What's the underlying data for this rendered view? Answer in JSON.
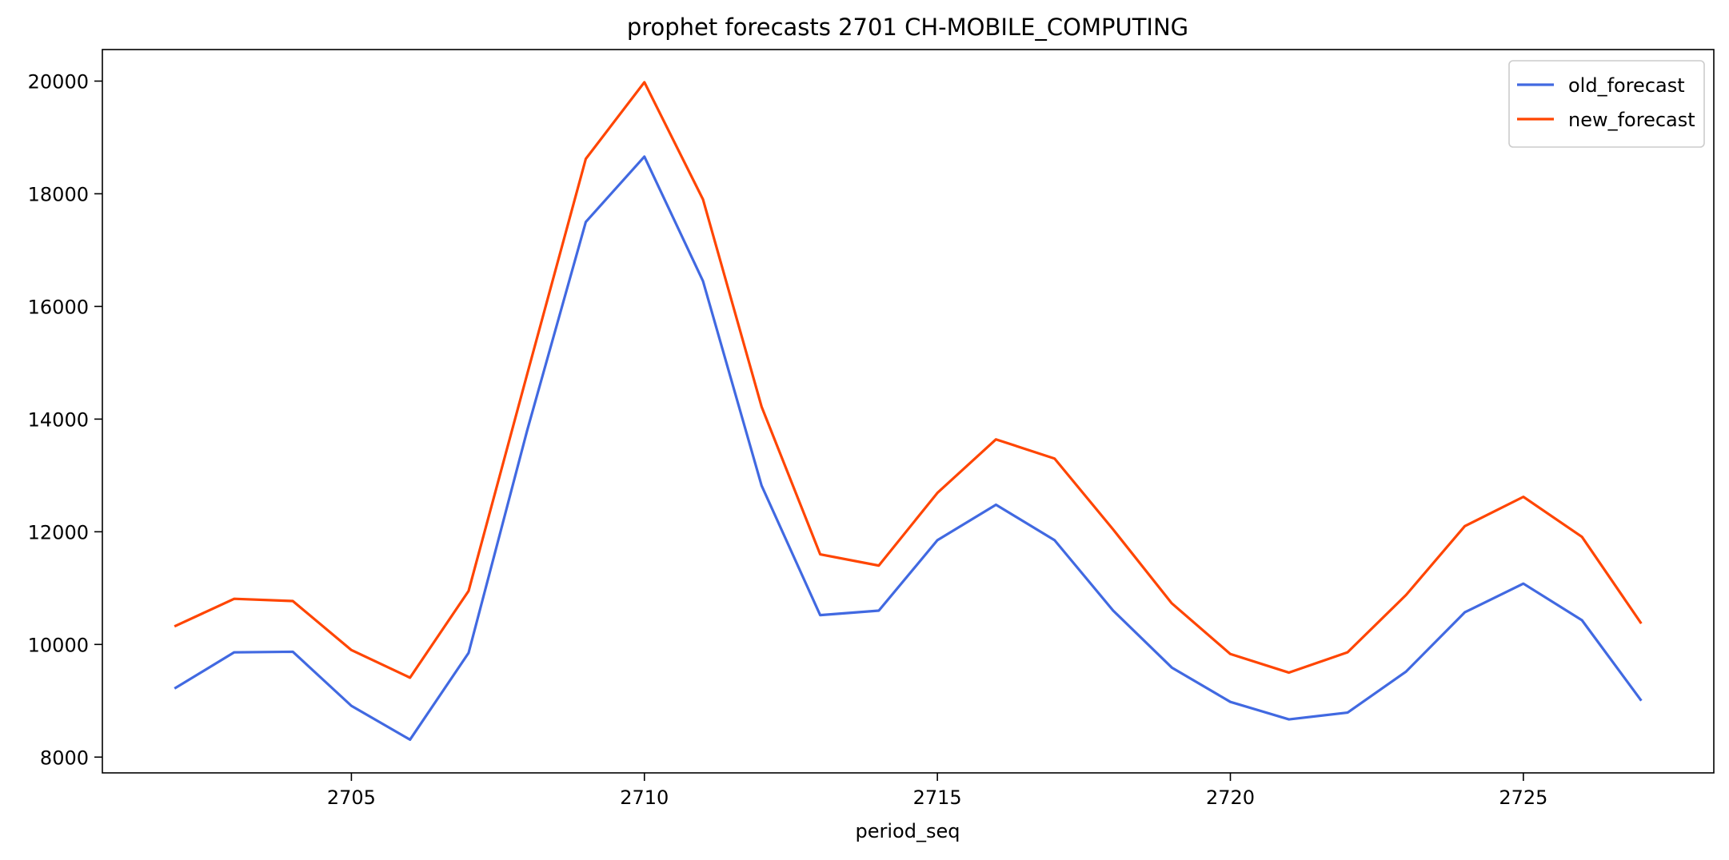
{
  "chart_data": {
    "type": "line",
    "title": "prophet forecasts 2701 CH-MOBILE_COMPUTING",
    "xlabel": "period_seq",
    "ylabel": "",
    "x": [
      2702,
      2703,
      2704,
      2705,
      2706,
      2707,
      2708,
      2709,
      2710,
      2711,
      2712,
      2713,
      2714,
      2715,
      2716,
      2717,
      2718,
      2719,
      2720,
      2721,
      2722,
      2723,
      2724,
      2725,
      2726,
      2727
    ],
    "xticks": [
      2705,
      2710,
      2715,
      2720,
      2725
    ],
    "yticks": [
      8000,
      10000,
      12000,
      14000,
      16000,
      18000,
      20000
    ],
    "xlim": [
      2700.75,
      2728.25
    ],
    "ylim": [
      7720,
      20560
    ],
    "grid": false,
    "legend_position": "top-right",
    "series": [
      {
        "name": "old_forecast",
        "color": "#4169e1",
        "values": [
          9230,
          9860,
          9870,
          8910,
          8310,
          9850,
          13800,
          17500,
          18660,
          16450,
          12820,
          10520,
          10600,
          11850,
          12480,
          11850,
          10600,
          9590,
          8980,
          8670,
          8790,
          9520,
          10570,
          11080,
          10430,
          9020
        ]
      },
      {
        "name": "new_forecast",
        "color": "#ff4500",
        "values": [
          10330,
          10810,
          10770,
          9900,
          9410,
          10950,
          14800,
          18620,
          19980,
          17900,
          14220,
          11600,
          11400,
          12690,
          13640,
          13300,
          12040,
          10730,
          9830,
          9500,
          9860,
          10880,
          12100,
          12620,
          11910,
          10390
        ]
      }
    ]
  }
}
